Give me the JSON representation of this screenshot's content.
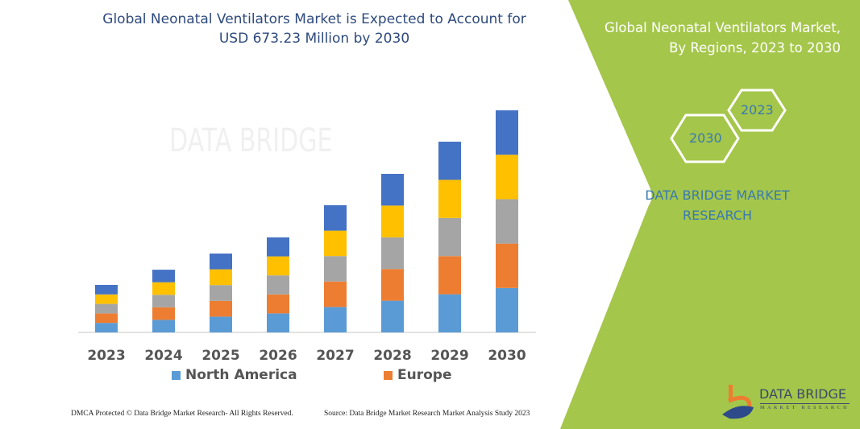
{
  "header": {
    "title_line1": "Global Neonatal Ventilators Market is Expected to Account for",
    "title_line2": "USD 673.23 Million by 2030"
  },
  "side_panel": {
    "title_line1": "Global Neonatal Ventilators Market,",
    "title_line2": "By Regions, 2023 to 2030",
    "hex_start": "2023",
    "hex_end": "2030",
    "brand_line1": "DATA BRIDGE MARKET",
    "brand_line2": "RESEARCH",
    "background_color": "#a4c64a"
  },
  "logo": {
    "name": "DATA BRIDGE",
    "sub": "MARKET RESEARCH"
  },
  "watermark": "DATA BRIDGE",
  "footer": {
    "left": "DMCA Protected © Data Bridge Market Research-  All Rights Reserved.",
    "right": "Source: Data Bridge Market Research  Market Analysis Study 2023"
  },
  "chart_data": {
    "type": "bar",
    "stacked": true,
    "title": "Global Neonatal Ventilators Market is Expected to Account for USD 673.23 Million by 2030",
    "categories": [
      "2023",
      "2024",
      "2025",
      "2026",
      "2027",
      "2028",
      "2029",
      "2030"
    ],
    "series": [
      {
        "name": "North America",
        "color": "#5b9bd5",
        "values": [
          28.8,
          38.0,
          47.8,
          57.6,
          77.1,
          96.1,
          115.6,
          134.6
        ]
      },
      {
        "name": "Europe",
        "color": "#ed7d31",
        "values": [
          28.8,
          38.0,
          47.8,
          57.6,
          77.1,
          96.1,
          115.6,
          134.6
        ]
      },
      {
        "color": "#a5a5a5",
        "values": [
          28.8,
          38.0,
          47.8,
          57.6,
          77.1,
          96.1,
          115.6,
          134.6
        ]
      },
      {
        "color": "#ffc000",
        "values": [
          28.8,
          38.0,
          47.8,
          57.6,
          77.1,
          96.1,
          115.6,
          134.6
        ]
      },
      {
        "color": "#4472c4",
        "values": [
          28.8,
          38.0,
          47.8,
          57.6,
          77.1,
          96.1,
          115.6,
          134.6
        ]
      }
    ],
    "ylim": [
      0,
      673.23
    ],
    "y_axis_visible": false,
    "grid": false,
    "legend": "bottom"
  }
}
